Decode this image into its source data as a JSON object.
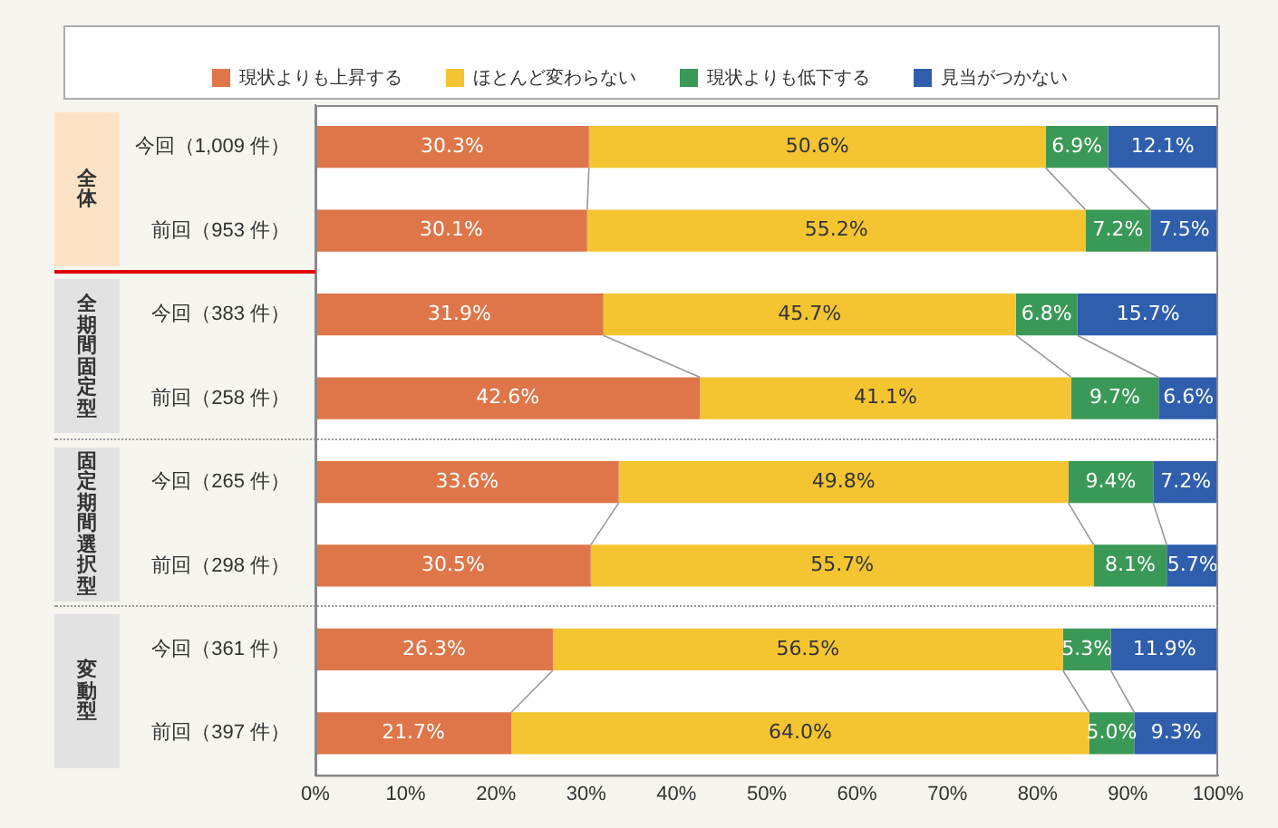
{
  "chart_data": {
    "type": "bar",
    "orientation": "horizontal",
    "stacked": true,
    "categories": [
      "今回（1,009 件）",
      "前回（953 件）",
      "今回（383 件）",
      "前回（258 件）",
      "今回（265 件）",
      "前回（298 件）",
      "今回（361 件）",
      "前回（397 件）"
    ],
    "series": [
      {
        "name": "現状よりも上昇する",
        "color": "#de7649",
        "values": [
          30.3,
          30.1,
          31.9,
          42.6,
          33.6,
          30.5,
          26.3,
          21.7
        ],
        "value_labels": [
          "30.3%",
          "30.1%",
          "31.9%",
          "42.6%",
          "33.6%",
          "30.5%",
          "26.3%",
          "21.7%"
        ]
      },
      {
        "name": "ほとんど変わらない",
        "color": "#f4c531",
        "values": [
          50.6,
          55.2,
          45.7,
          41.1,
          49.8,
          55.7,
          56.5,
          64.0
        ],
        "value_labels": [
          "50.6%",
          "55.2%",
          "45.7%",
          "41.1%",
          "49.8%",
          "55.7%",
          "56.5%",
          "64.0%"
        ]
      },
      {
        "name": "現状よりも低下する",
        "color": "#3b9957",
        "values": [
          6.9,
          7.2,
          6.8,
          9.7,
          9.4,
          8.1,
          5.3,
          5.0
        ],
        "value_labels": [
          "6.9%",
          "7.2%",
          "6.8%",
          "9.7%",
          "9.4%",
          "8.1%",
          "5.3%",
          "5.0%"
        ]
      },
      {
        "name": "見当がつかない",
        "color": "#2f5ead",
        "values": [
          12.1,
          7.5,
          15.7,
          6.6,
          7.2,
          5.7,
          11.9,
          9.3
        ],
        "value_labels": [
          "12.1%",
          "7.5%",
          "15.7%",
          "6.6%",
          "7.2%",
          "5.7%",
          "11.9%",
          "9.3%"
        ]
      }
    ],
    "xlim": [
      0,
      100
    ],
    "xticks": [
      {
        "value": 0,
        "label": "0%"
      },
      {
        "value": 10,
        "label": "10%"
      },
      {
        "value": 20,
        "label": "20%"
      },
      {
        "value": 30,
        "label": "30%"
      },
      {
        "value": 40,
        "label": "40%"
      },
      {
        "value": 50,
        "label": "50%"
      },
      {
        "value": 60,
        "label": "60%"
      },
      {
        "value": 70,
        "label": "70%"
      },
      {
        "value": 80,
        "label": "80%"
      },
      {
        "value": 90,
        "label": "90%"
      },
      {
        "value": 100,
        "label": "100%"
      }
    ],
    "annotations": [
      "全体",
      "全期間固定型",
      "固定期間選択型",
      "変動型"
    ],
    "legend": "top",
    "grid": false
  }
}
